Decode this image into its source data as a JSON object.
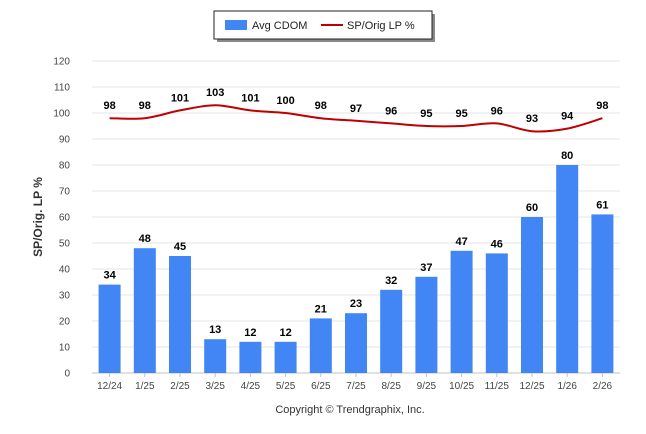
{
  "chart_data": {
    "type": "bar",
    "title": "",
    "xlabel": "",
    "ylabel": "SP/Orig. LP %",
    "ylim": [
      0,
      120
    ],
    "yticks": [
      0,
      10,
      20,
      30,
      40,
      50,
      60,
      70,
      80,
      90,
      100,
      110,
      120
    ],
    "grid": true,
    "legend_position": "top-center",
    "categories": [
      "12/24",
      "1/25",
      "2/25",
      "3/25",
      "4/25",
      "5/25",
      "6/25",
      "7/25",
      "8/25",
      "9/25",
      "10/25",
      "11/25",
      "12/25",
      "1/26",
      "2/26"
    ],
    "series": [
      {
        "name": "Avg CDOM",
        "type": "bar",
        "color": "#4285f4",
        "values": [
          34,
          48,
          45,
          13,
          12,
          12,
          21,
          23,
          32,
          37,
          47,
          46,
          60,
          80,
          61
        ]
      },
      {
        "name": "SP/Orig LP %",
        "type": "line",
        "color": "#c00000",
        "values": [
          98,
          98,
          101,
          103,
          101,
          100,
          98,
          97,
          96,
          95,
          95,
          96,
          93,
          94,
          98
        ]
      }
    ]
  },
  "footer": {
    "copyright": "Copyright © Trendgraphix, Inc."
  }
}
